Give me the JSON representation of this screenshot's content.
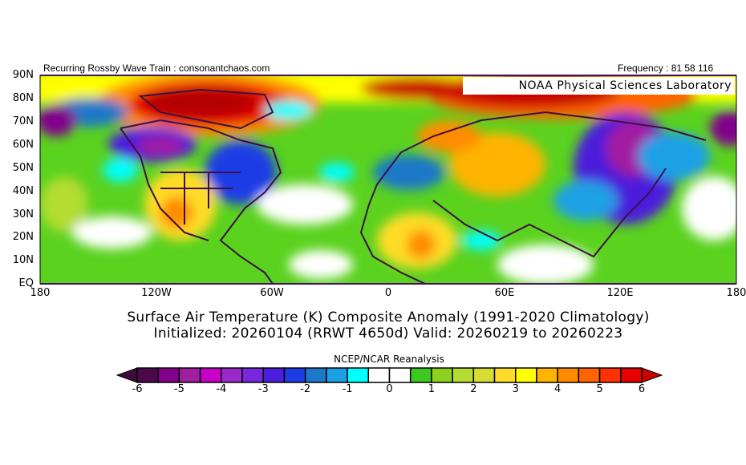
{
  "header": {
    "left_text": "Recurring Rossby Wave Train : consonantchaos.com",
    "right_text": "Frequency : 81 58 116",
    "lab_label": "NOAA Physical Sciences Laboratory"
  },
  "axes": {
    "lat_labels": [
      "90N",
      "80N",
      "70N",
      "60N",
      "50N",
      "40N",
      "30N",
      "20N",
      "10N",
      "EQ"
    ],
    "lon_labels": [
      "180",
      "120W",
      "60W",
      "0",
      "60E",
      "120E",
      "180"
    ]
  },
  "titles": {
    "line1": "Surface Air Temperature (K) Composite Anomaly (1991-2020 Climatology)",
    "line2": "Initialized: 20260104 (RRWT 4650d) Valid: 20260219 to 20260223"
  },
  "colorbar": {
    "title": "NCEP/NCAR Reanalysis",
    "labels": [
      "-6",
      "-5",
      "-4",
      "-3",
      "-2",
      "-1",
      "0",
      "1",
      "2",
      "3",
      "4",
      "5",
      "6"
    ],
    "low_arrow_color": "#3c0a3c",
    "high_arrow_color": "#c80000",
    "colors": [
      "#4a0a4a",
      "#82008c",
      "#a01ea0",
      "#c800c8",
      "#9b28c8",
      "#7828dc",
      "#4b1edc",
      "#1e3ce6",
      "#1e78c8",
      "#1ea0e6",
      "#00ffff",
      "#ffffff",
      "#ffffff",
      "#3cc81e",
      "#8cd21e",
      "#b4dc32",
      "#d7dc32",
      "#ffdc28",
      "#ffff00",
      "#ffb400",
      "#ff8c00",
      "#ff6400",
      "#ff3200",
      "#e60000"
    ]
  }
}
